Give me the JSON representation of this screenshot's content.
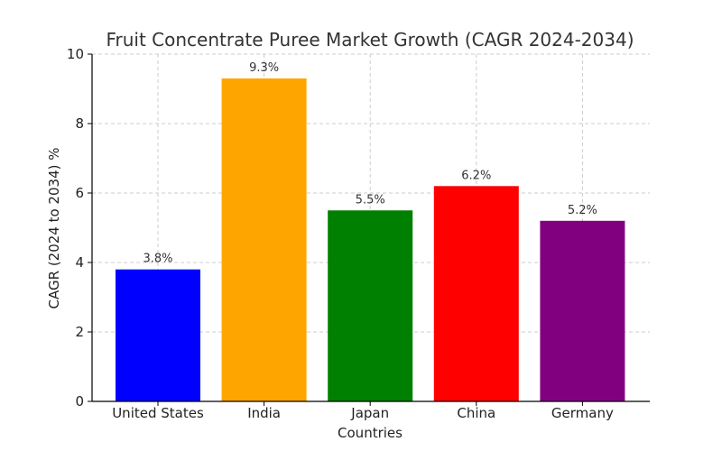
{
  "chart_data": {
    "type": "bar",
    "title": "Fruit Concentrate Puree Market Growth (CAGR 2024-2034)",
    "xlabel": "Countries",
    "ylabel": "CAGR (2024 to 2034) %",
    "categories": [
      "United States",
      "India",
      "Japan",
      "China",
      "Germany"
    ],
    "values": [
      3.8,
      9.3,
      5.5,
      6.2,
      5.2
    ],
    "data_labels": [
      "3.8%",
      "9.3%",
      "5.5%",
      "6.2%",
      "5.2%"
    ],
    "colors": [
      "#0000ff",
      "#ffa500",
      "#008000",
      "#ff0000",
      "#800080"
    ],
    "ylim": [
      0,
      10
    ],
    "yticks": [
      0,
      2,
      4,
      6,
      8,
      10
    ],
    "grid": true
  }
}
